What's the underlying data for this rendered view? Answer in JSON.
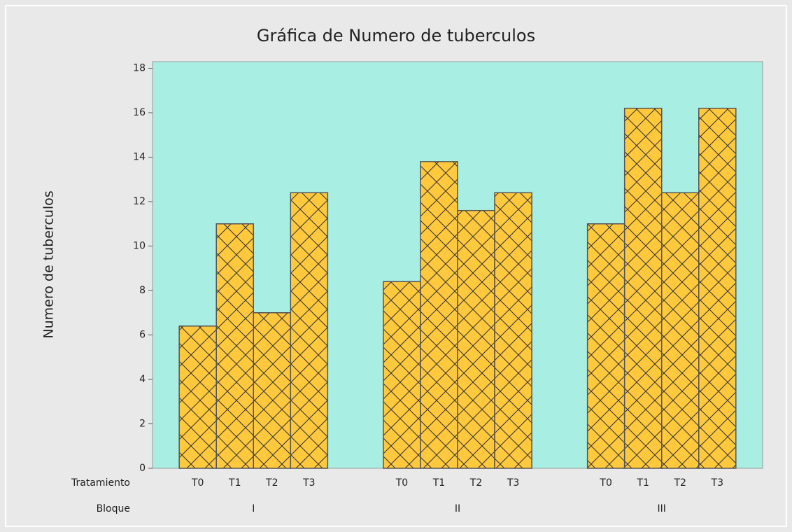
{
  "chart_data": {
    "type": "bar",
    "title": "Gráfica de Numero de tuberculos",
    "ylabel": "Numero de tuberculos",
    "category_label": "Tratamiento",
    "series_label": "Bloque",
    "categories": [
      "T0",
      "T1",
      "T2",
      "T3"
    ],
    "series": [
      {
        "name": "I",
        "values": [
          6.4,
          11,
          7,
          12.4
        ]
      },
      {
        "name": "II",
        "values": [
          8.4,
          13.8,
          11.6,
          12.4
        ]
      },
      {
        "name": "III",
        "values": [
          11,
          16.2,
          12.4,
          16.2
        ]
      }
    ],
    "color": "#ffc83d",
    "background": "#a8eee3",
    "hatch": "crosshatch",
    "ylim": [
      0,
      18.3
    ],
    "yticks": [
      0,
      2,
      4,
      6,
      8,
      10,
      12,
      14,
      16,
      18
    ]
  }
}
